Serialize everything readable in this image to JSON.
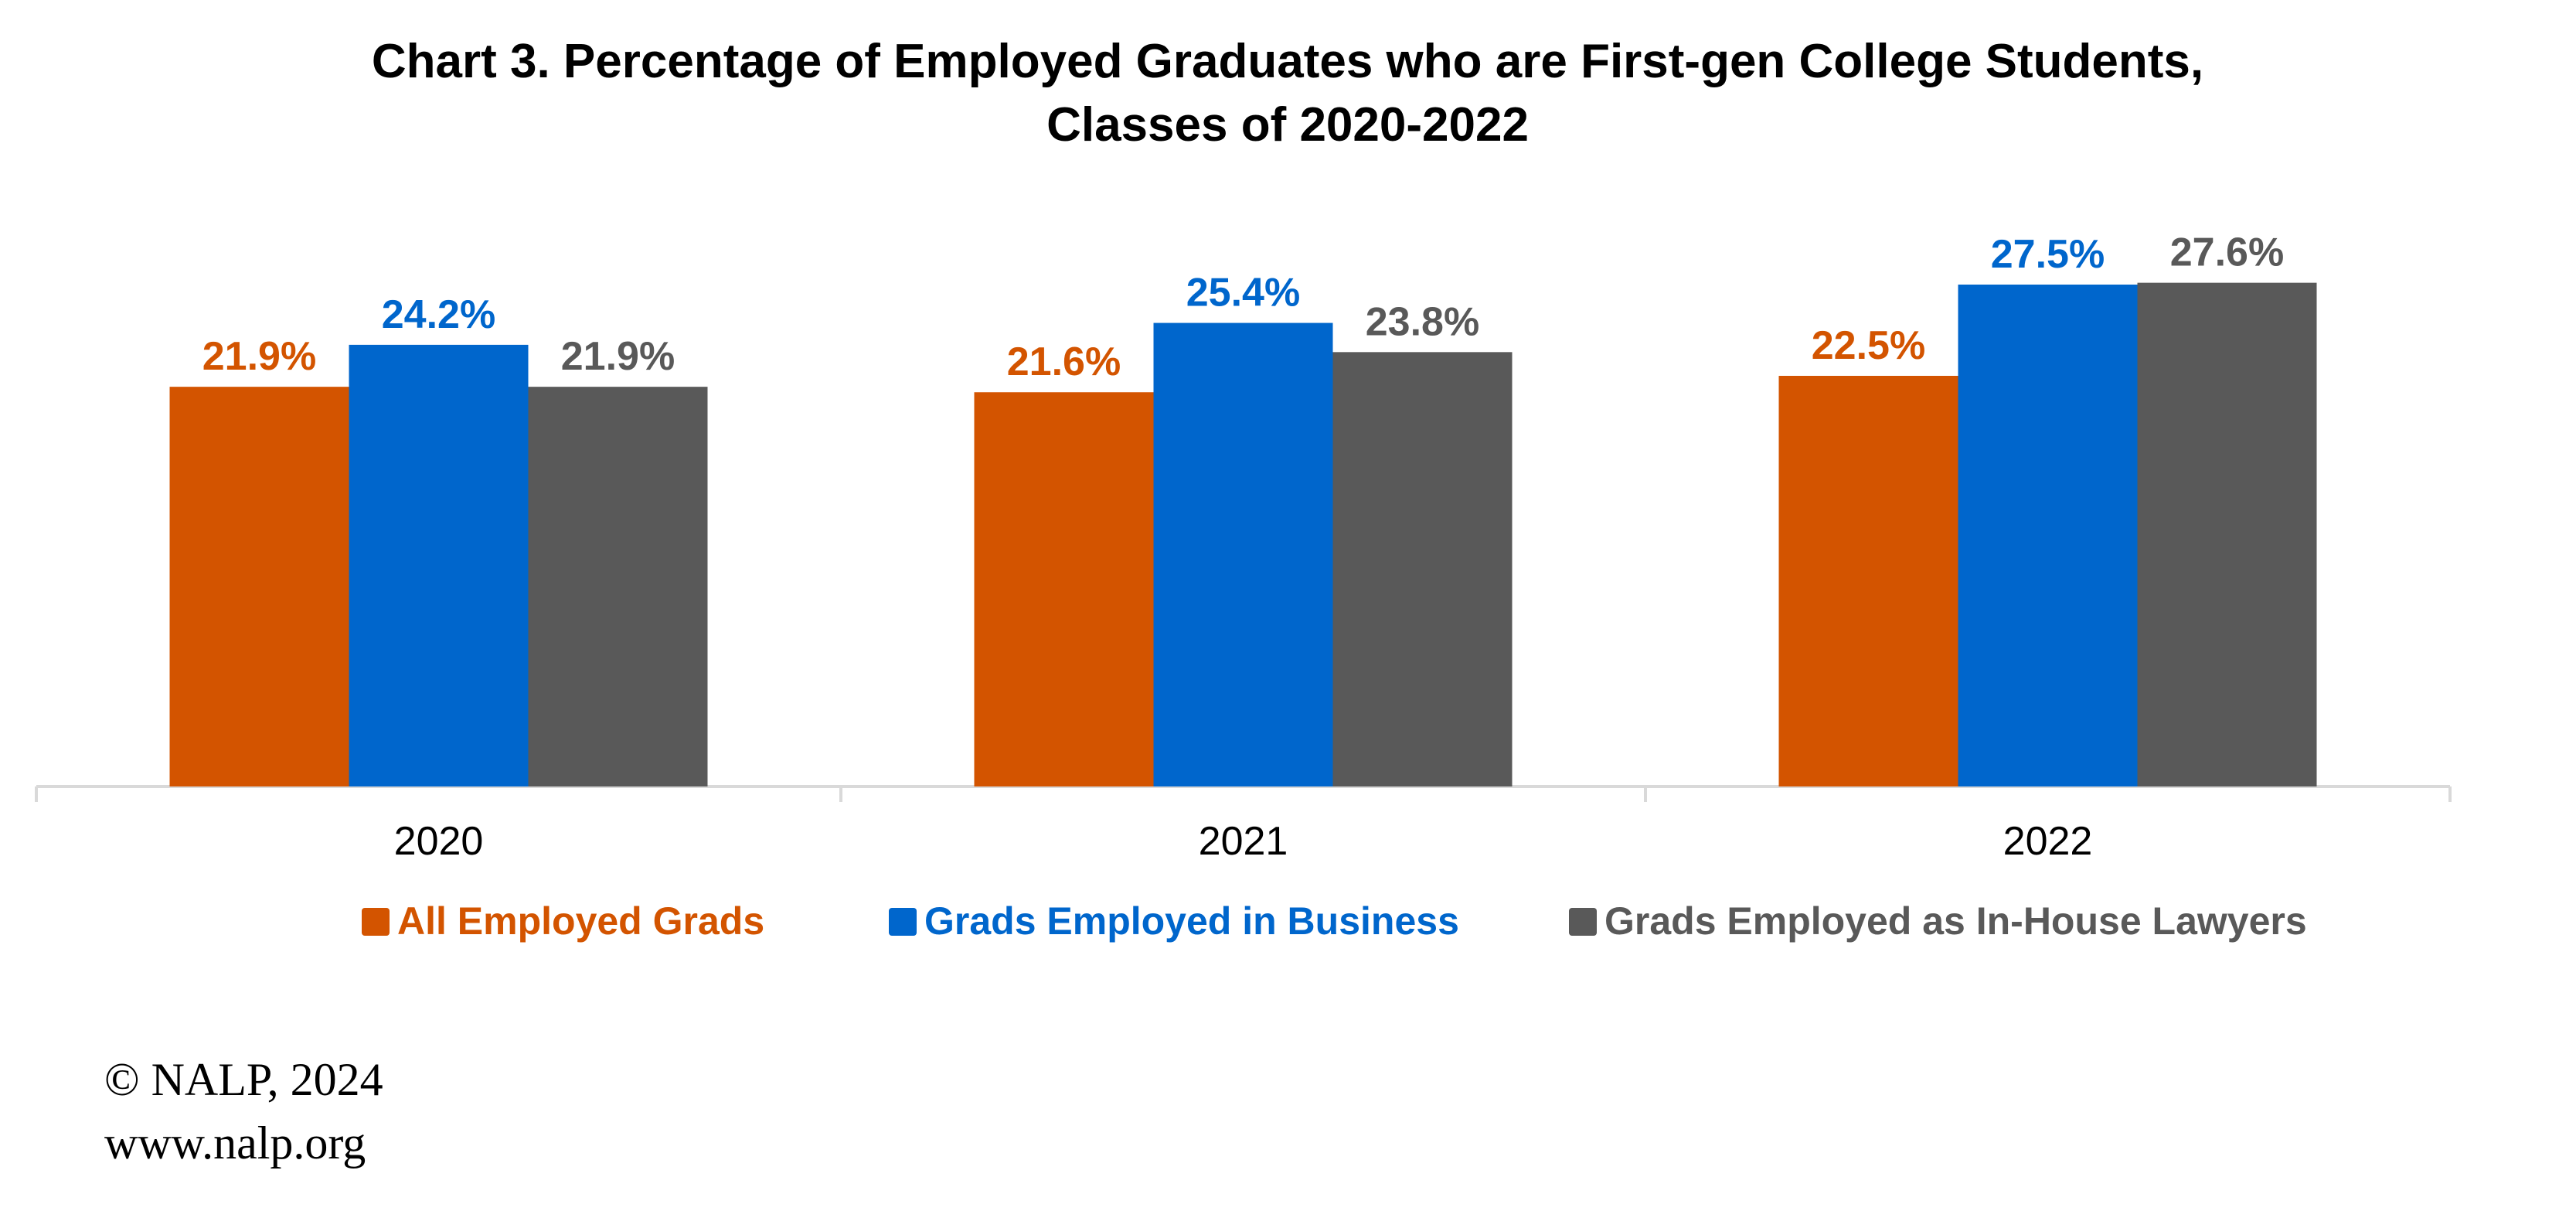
{
  "chart_data": {
    "type": "bar",
    "title": [
      "Chart 3. Percentage of Employed Graduates who are First-gen College Students,",
      "Classes of 2020-2022"
    ],
    "categories": [
      "2020",
      "2021",
      "2022"
    ],
    "series": [
      {
        "name": "All Employed Grads",
        "color": "#d35400",
        "values": [
          21.9,
          21.6,
          22.5
        ],
        "labels": [
          "21.9%",
          "21.6%",
          "22.5%"
        ]
      },
      {
        "name": "Grads Employed in Business",
        "color": "#0066cc",
        "values": [
          24.2,
          25.4,
          27.5
        ],
        "labels": [
          "24.2%",
          "25.4%",
          "27.5%"
        ]
      },
      {
        "name": "Grads Employed as In-House Lawyers",
        "color": "#595959",
        "values": [
          21.9,
          23.8,
          27.6
        ],
        "labels": [
          "21.9%",
          "23.8%",
          "27.6%"
        ]
      }
    ],
    "ylim": [
      0,
      40
    ],
    "grid": false,
    "legend_position": "bottom",
    "axis_color": "#d9d9d9"
  },
  "footer": {
    "copyright": "© NALP, 2024",
    "website": "www.nalp.org"
  }
}
